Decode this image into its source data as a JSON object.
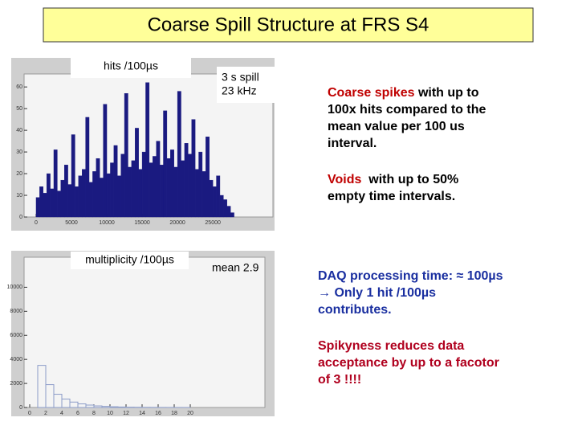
{
  "header": {
    "title": "Coarse Spill Structure at FRS S4"
  },
  "chart_data": [
    {
      "type": "histogram",
      "label": "hits /100µs",
      "note": [
        "3 s spill",
        "23 kHz"
      ],
      "color": "#1a1a80",
      "bins": [
        0,
        500,
        1000,
        1500,
        2000,
        2500,
        3000,
        3500,
        4000,
        4500,
        5000,
        5500,
        6000,
        6500,
        7000,
        7500,
        8000,
        8500,
        9000,
        9500,
        10000,
        10500,
        11000,
        11500,
        12000,
        12500,
        13000,
        13500,
        14000,
        14500,
        15000,
        15500,
        16000,
        16500,
        17000,
        17500,
        18000,
        18500,
        19000,
        19500,
        20000,
        20500,
        21000,
        21500,
        22000,
        22500,
        23000,
        23500,
        24000,
        24500,
        25000,
        25500,
        26000,
        26500,
        27000,
        27500,
        28000
      ],
      "values": [
        9,
        14,
        11,
        20,
        13,
        31,
        12,
        17,
        24,
        15,
        38,
        14,
        19,
        22,
        46,
        16,
        21,
        27,
        18,
        52,
        20,
        25,
        33,
        19,
        29,
        57,
        23,
        26,
        41,
        22,
        30,
        62,
        25,
        28,
        35,
        24,
        49,
        27,
        31,
        23,
        58,
        26,
        34,
        29,
        45,
        22,
        30,
        21,
        37,
        17,
        14,
        19,
        10,
        8,
        5,
        2
      ],
      "xlim": [
        -1700,
        33500
      ],
      "ylim": [
        0,
        66
      ],
      "xticks": [
        0,
        5000,
        10000,
        15000,
        20000,
        25000
      ],
      "yticks": [
        0,
        10,
        20,
        30,
        40,
        50,
        60
      ]
    },
    {
      "type": "histogram",
      "label": "multiplicity /100µs",
      "note": [
        "mean 2.9"
      ],
      "color": "#8c9cc8",
      "bins": [
        0,
        1,
        2,
        3,
        4,
        5,
        6,
        7,
        8,
        9,
        10,
        11,
        12,
        13,
        14,
        15,
        16,
        17,
        18,
        19,
        20
      ],
      "values": [
        0,
        3500,
        1900,
        1100,
        700,
        450,
        300,
        200,
        130,
        90,
        60,
        40,
        25,
        18,
        12,
        8,
        5,
        3,
        2,
        1
      ],
      "xlim": [
        -0.7,
        29.3
      ],
      "ylim": [
        0,
        12500
      ],
      "xticks": [
        0,
        2,
        4,
        6,
        8,
        10,
        12,
        14,
        16,
        18,
        20
      ],
      "yticks": [
        0,
        2000,
        4000,
        6000,
        8000,
        10000
      ]
    }
  ],
  "notes": [
    {
      "lines": [
        [
          {
            "text": "Coarse spikes",
            "color": "#c00000"
          },
          {
            "text": " with up to",
            "color": "#000000"
          }
        ],
        [
          {
            "text": "100x hits compared to the",
            "color": "#000000"
          }
        ],
        [
          {
            "text": "mean value per 100 us",
            "color": "#000000"
          }
        ],
        [
          {
            "text": "interval.",
            "color": "#000000"
          }
        ]
      ]
    },
    {
      "lines": [
        [
          {
            "text": "Voids",
            "color": "#c00000"
          },
          {
            "text": "  with up to 50%",
            "color": "#000000"
          }
        ],
        [
          {
            "text": "empty time intervals.",
            "color": "#000000"
          }
        ]
      ]
    },
    {
      "lines": [
        [
          {
            "text": "DAQ processing time: ≈ 100µs",
            "color": "#1a2fa0"
          }
        ],
        [
          {
            "text": "→ Only 1 hit /100µs",
            "color": "#1a2fa0"
          }
        ],
        [
          {
            "text": "contributes.",
            "color": "#1a2fa0"
          }
        ]
      ]
    },
    {
      "lines": [
        [
          {
            "text": "Spikyness reduces data",
            "color": "#b0001e"
          }
        ],
        [
          {
            "text": "acceptance by up to a facotor",
            "color": "#b0001e"
          }
        ],
        [
          {
            "text": "of 3 !!!!",
            "color": "#b0001e"
          }
        ]
      ]
    }
  ]
}
